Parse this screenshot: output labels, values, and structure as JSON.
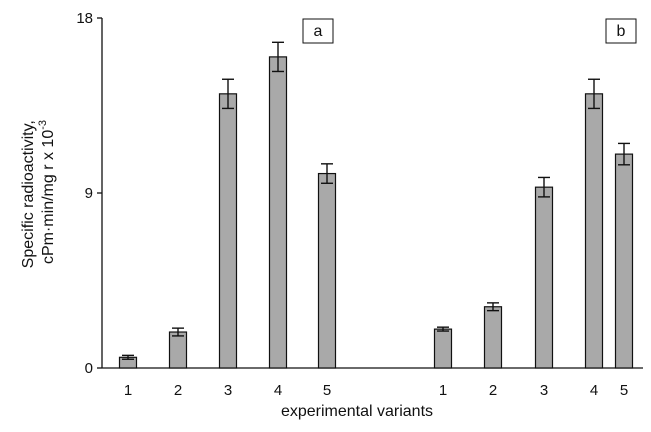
{
  "chart_data": {
    "type": "bar",
    "xlabel": "experimental variants",
    "ylabel_line1": "Specific radioactivity,",
    "ylabel_line2": "cPm·min/mg r x 10",
    "ylabel_exponent": "-3",
    "ylim": [
      0,
      18
    ],
    "yticks": [
      0,
      9,
      18
    ],
    "grid": false,
    "bar_color": "#a9a9a9",
    "panels": [
      {
        "label": "a",
        "categories": [
          "1",
          "2",
          "3",
          "4",
          "5"
        ],
        "values": [
          0.55,
          1.85,
          14.1,
          16.0,
          10.0
        ],
        "errors": [
          0.1,
          0.2,
          0.75,
          0.75,
          0.5
        ]
      },
      {
        "label": "b",
        "categories": [
          "1",
          "2",
          "3",
          "4",
          "5"
        ],
        "values": [
          2.0,
          3.15,
          9.3,
          14.1,
          11.0
        ],
        "errors": [
          0.1,
          0.2,
          0.5,
          0.75,
          0.55
        ]
      }
    ]
  }
}
